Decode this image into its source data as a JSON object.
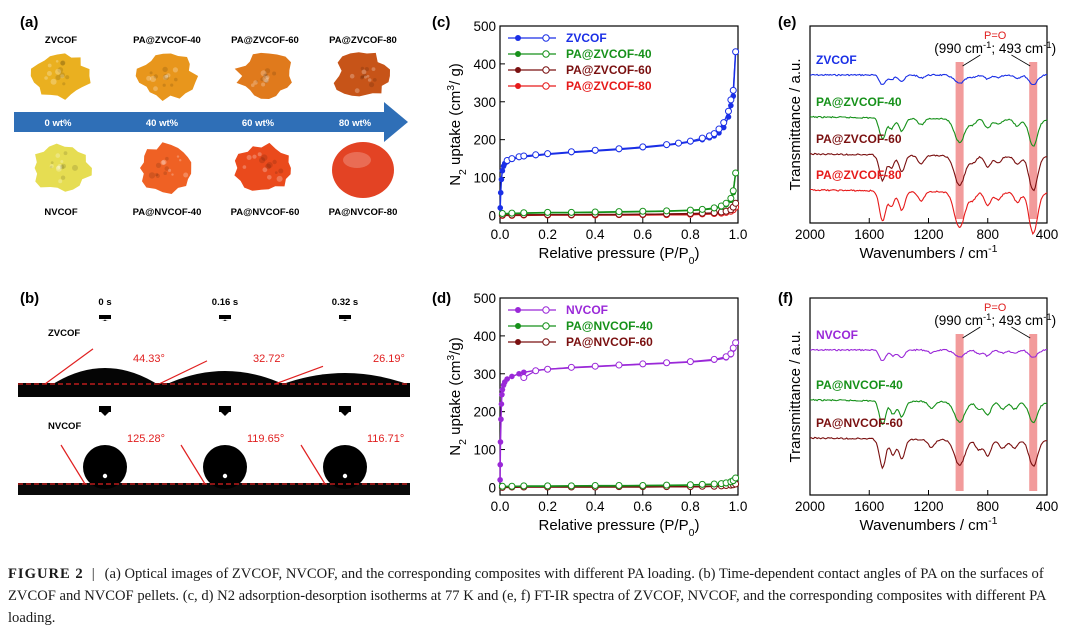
{
  "panel_a": {
    "label": "(a)",
    "top_labels": [
      "ZVCOF",
      "PA@ZVCOF-40",
      "PA@ZVCOF-60",
      "PA@ZVCOF-80"
    ],
    "arrow_labels": [
      "0 wt%",
      "40 wt%",
      "60 wt%",
      "80 wt%"
    ],
    "bottom_labels": [
      "NVCOF",
      "PA@NVCOF-40",
      "PA@NVCOF-60",
      "PA@NVCOF-80"
    ],
    "colors": {
      "top": [
        "#eab020",
        "#e8961c",
        "#e07a1c",
        "#c75418"
      ],
      "bottom": [
        "#e6dd52",
        "#ef6124",
        "#ea4a1c",
        "#e34324"
      ],
      "arrow": "#2f6fb7"
    }
  },
  "panel_b": {
    "label": "(b)",
    "times": [
      "0 s",
      "0.16 s",
      "0.32 s"
    ],
    "rows": [
      {
        "name": "ZVCOF",
        "angles": [
          "44.33°",
          "32.72°",
          "26.19°"
        ]
      },
      {
        "name": "NVCOF",
        "angles": [
          "125.28°",
          "119.65°",
          "116.71°"
        ]
      }
    ]
  },
  "chart_data": [
    {
      "panel": "(c)",
      "type": "line",
      "xlabel": "Relative pressure (P/P0)",
      "ylabel": "N2 uptake (cm3/ g)",
      "xlim": [
        0,
        1.0
      ],
      "ylim": [
        -20,
        500
      ],
      "xticks": [
        "0.0",
        "0.2",
        "0.4",
        "0.6",
        "0.8",
        "1.0"
      ],
      "yticks": [
        "0",
        "100",
        "200",
        "300",
        "400",
        "500"
      ],
      "series": [
        {
          "name": "ZVCOF",
          "color": "#1a2fe6",
          "x": [
            0.001,
            0.003,
            0.006,
            0.01,
            0.015,
            0.02,
            0.03,
            0.05,
            0.08,
            0.1,
            0.15,
            0.2,
            0.3,
            0.4,
            0.5,
            0.6,
            0.7,
            0.75,
            0.8,
            0.85,
            0.88,
            0.9,
            0.92,
            0.94,
            0.96,
            0.97,
            0.98,
            0.99
          ],
          "adsorption": [
            20,
            60,
            95,
            118,
            130,
            137,
            142,
            148,
            153,
            155,
            158,
            161,
            166,
            170,
            174,
            179,
            185,
            189,
            194,
            200,
            205,
            210,
            218,
            232,
            260,
            290,
            315,
            432
          ],
          "desorption": [
            null,
            null,
            null,
            null,
            null,
            null,
            145,
            150,
            155,
            157,
            160,
            163,
            168,
            172,
            176,
            181,
            187,
            191,
            196,
            204,
            210,
            216,
            228,
            245,
            275,
            305,
            330,
            432
          ]
        },
        {
          "name": "PA@ZVCOF-40",
          "color": "#16911a",
          "x": [
            0.01,
            0.05,
            0.1,
            0.2,
            0.3,
            0.4,
            0.5,
            0.6,
            0.7,
            0.8,
            0.85,
            0.9,
            0.93,
            0.95,
            0.97,
            0.98,
            0.99
          ],
          "adsorption": [
            4,
            5,
            6,
            7,
            7,
            8,
            9,
            10,
            11,
            13,
            15,
            18,
            22,
            28,
            40,
            60,
            112
          ],
          "desorption": [
            5,
            6,
            7,
            8,
            8,
            9,
            10,
            11,
            12,
            14,
            16,
            20,
            25,
            32,
            45,
            65,
            112
          ]
        },
        {
          "name": "PA@ZVCOF-60",
          "color": "#7a1010",
          "x": [
            0.01,
            0.05,
            0.1,
            0.2,
            0.3,
            0.4,
            0.5,
            0.6,
            0.7,
            0.8,
            0.85,
            0.9,
            0.93,
            0.95,
            0.97,
            0.98,
            0.99
          ],
          "adsorption": [
            1,
            1,
            1,
            2,
            2,
            2,
            2,
            3,
            3,
            4,
            5,
            6,
            8,
            10,
            14,
            20,
            32
          ],
          "desorption": [
            1,
            1,
            2,
            2,
            2,
            3,
            3,
            3,
            4,
            5,
            6,
            7,
            9,
            11,
            15,
            22,
            32
          ]
        },
        {
          "name": "PA@ZVCOF-80",
          "color": "#e61a1a",
          "x": [
            0.01,
            0.05,
            0.1,
            0.2,
            0.3,
            0.4,
            0.5,
            0.6,
            0.7,
            0.8,
            0.85,
            0.9,
            0.93,
            0.95,
            0.97,
            0.98,
            0.99
          ],
          "adsorption": [
            0,
            0,
            0,
            1,
            1,
            1,
            1,
            1,
            2,
            2,
            3,
            4,
            5,
            7,
            10,
            14,
            22
          ],
          "desorption": [
            0,
            0,
            1,
            1,
            1,
            1,
            2,
            2,
            2,
            3,
            4,
            5,
            6,
            8,
            11,
            15,
            22
          ]
        }
      ]
    },
    {
      "panel": "(d)",
      "type": "line",
      "xlabel": "Relative pressure (P/P0)",
      "ylabel": "N2 uptake (cm3/g)",
      "xlim": [
        0,
        1.0
      ],
      "ylim": [
        -20,
        500
      ],
      "xticks": [
        "0.0",
        "0.2",
        "0.4",
        "0.6",
        "0.8",
        "1.0"
      ],
      "yticks": [
        "0",
        "100",
        "200",
        "300",
        "400",
        "500"
      ],
      "series": [
        {
          "name": "NVCOF",
          "color": "#9a28d8",
          "x": [
            0.0005,
            0.001,
            0.002,
            0.004,
            0.006,
            0.008,
            0.01,
            0.015,
            0.02,
            0.03,
            0.05,
            0.08,
            0.1,
            0.15,
            0.2,
            0.3,
            0.4,
            0.5,
            0.6,
            0.7,
            0.8,
            0.9,
            0.95,
            0.97,
            0.98,
            0.99
          ],
          "adsorption": [
            20,
            60,
            120,
            180,
            220,
            245,
            258,
            270,
            278,
            286,
            293,
            300,
            304,
            309,
            312,
            316,
            319,
            322,
            325,
            328,
            331,
            336,
            342,
            350,
            365,
            382
          ],
          "desorption": [
            null,
            null,
            null,
            null,
            null,
            null,
            null,
            null,
            null,
            null,
            null,
            null,
            290,
            308,
            312,
            317,
            320,
            323,
            326,
            329,
            332,
            338,
            345,
            353,
            368,
            382
          ]
        },
        {
          "name": "PA@NVCOF-40",
          "color": "#16911a",
          "x": [
            0.01,
            0.05,
            0.1,
            0.2,
            0.3,
            0.4,
            0.5,
            0.6,
            0.7,
            0.8,
            0.85,
            0.9,
            0.93,
            0.95,
            0.97,
            0.98,
            0.99
          ],
          "adsorption": [
            2,
            3,
            3,
            3,
            4,
            4,
            4,
            5,
            5,
            6,
            7,
            8,
            9,
            10,
            13,
            16,
            25
          ],
          "desorption": [
            3,
            3,
            4,
            4,
            4,
            5,
            5,
            5,
            6,
            7,
            8,
            9,
            10,
            12,
            15,
            18,
            25
          ]
        },
        {
          "name": "PA@NVCOF-60",
          "color": "#7a1010",
          "x": [
            0.01,
            0.05,
            0.1,
            0.2,
            0.3,
            0.4,
            0.5,
            0.6,
            0.7,
            0.8,
            0.85,
            0.9,
            0.93,
            0.95,
            0.97,
            0.98,
            0.99
          ],
          "adsorption": [
            0,
            0,
            1,
            1,
            1,
            1,
            1,
            1,
            2,
            2,
            2,
            3,
            3,
            4,
            5,
            6,
            9
          ],
          "desorption": [
            0,
            1,
            1,
            1,
            1,
            1,
            2,
            2,
            2,
            2,
            3,
            3,
            4,
            5,
            6,
            7,
            9
          ]
        }
      ]
    },
    {
      "panel": "(e)",
      "type": "line",
      "xlabel": "Wavenumbers / cm-1",
      "ylabel": "Transmittance / a.u.",
      "xlim": [
        2000,
        400
      ],
      "xticks": [
        "2000",
        "1600",
        "1200",
        "800",
        "400"
      ],
      "annotation": {
        "title": "P=O",
        "text": "(990 cm-1; 493 cm-1)",
        "bands": [
          990,
          493
        ]
      },
      "series": [
        {
          "name": "ZVCOF",
          "color": "#1a2fe6"
        },
        {
          "name": "PA@ZVCOF-40",
          "color": "#16911a"
        },
        {
          "name": "PA@ZVCOF-60",
          "color": "#7a1010"
        },
        {
          "name": "PA@ZVCOF-80",
          "color": "#e61a1a"
        }
      ]
    },
    {
      "panel": "(f)",
      "type": "line",
      "xlabel": "Wavenumbers / cm-1",
      "ylabel": "Transmittance / a.u.",
      "xlim": [
        2000,
        400
      ],
      "xticks": [
        "2000",
        "1600",
        "1200",
        "800",
        "400"
      ],
      "annotation": {
        "title": "P=O",
        "text": "(990 cm-1; 493 cm-1)",
        "bands": [
          990,
          493
        ]
      },
      "series": [
        {
          "name": "NVCOF",
          "color": "#9a28d8"
        },
        {
          "name": "PA@NVCOF-40",
          "color": "#16911a"
        },
        {
          "name": "PA@NVCOF-60",
          "color": "#7a1010"
        }
      ]
    }
  ],
  "caption": {
    "label": "FIGURE 2",
    "separator": "|",
    "text": "(a) Optical images of ZVCOF, NVCOF, and the corresponding composites with different PA loading. (b) Time-dependent contact angles of PA on the surfaces of ZVCOF and NVCOF pellets. (c, d) N2 adsorption-desorption isotherms at 77 K and (e, f) FT-IR spectra of ZVCOF, NVCOF, and the corresponding composites with different PA loading."
  }
}
